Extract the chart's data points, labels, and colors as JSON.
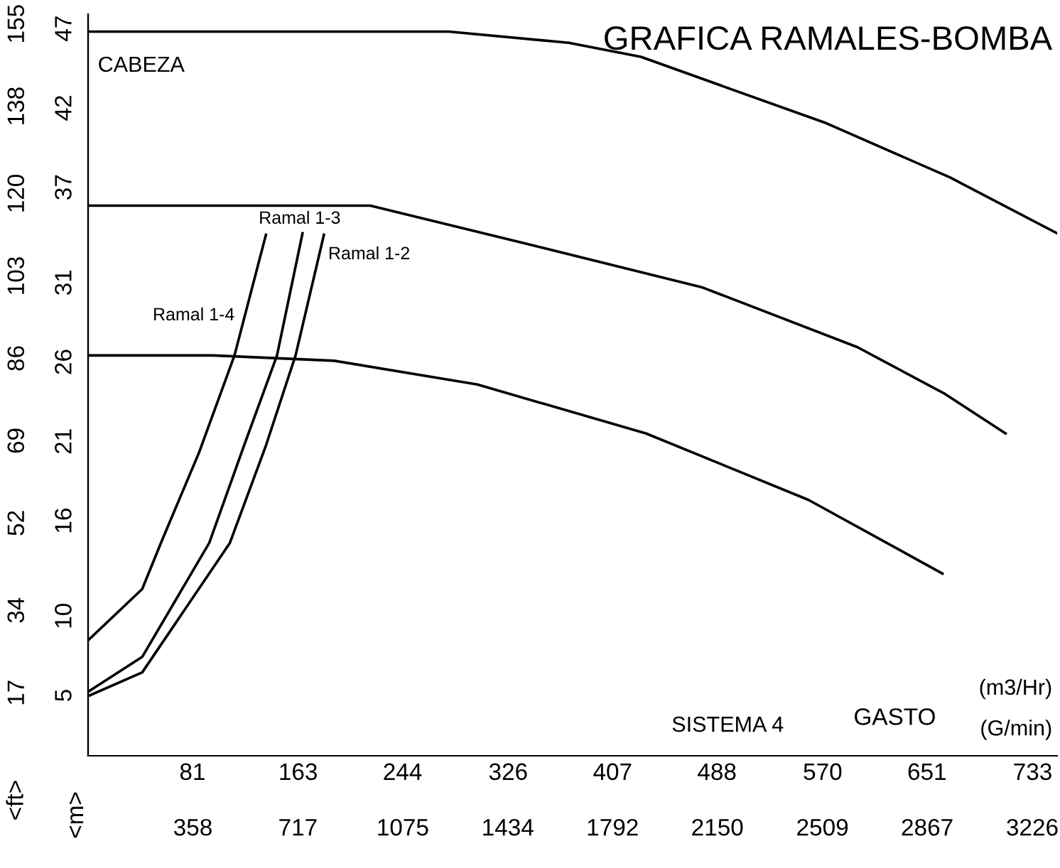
{
  "chart_data": {
    "type": "line",
    "title": "GRAFICA RAMALES-BOMBA",
    "ylabel": "<ft>",
    "y2label": "<m>",
    "xlabel": "GASTO",
    "annotations": [
      "CABEZA",
      "SISTEMA 4",
      "(m3/Hr)",
      "(G/min)"
    ],
    "xlim": [
      0,
      752
    ],
    "xticks": [
      81,
      163,
      244,
      326,
      407,
      488,
      570,
      651,
      733
    ],
    "x2lim": [
      0,
      3311
    ],
    "x2ticks": [
      358,
      717,
      1075,
      1434,
      1792,
      2150,
      2509,
      2867,
      3226
    ],
    "ylim": [
      4,
      157
    ],
    "yticks": [
      17,
      34,
      52,
      69,
      86,
      103,
      120,
      138,
      155
    ],
    "y2lim": [
      1.2,
      47.9
    ],
    "y2ticks": [
      5,
      10,
      16,
      21,
      26,
      31,
      37,
      42,
      47
    ],
    "grid": false,
    "legend": false,
    "marker": "none",
    "line_style": "solid",
    "series": [
      {
        "color": "#000000",
        "x": [
          0,
          280,
          373,
          429,
          573,
          669,
          752
        ],
        "values": [
          153.4,
          153.4,
          151.1,
          148.2,
          134.5,
          123.3,
          111.8
        ]
      },
      {
        "color": "#000000",
        "x": [
          0,
          219,
          333,
          477,
          597,
          664,
          712
        ],
        "values": [
          117.5,
          117.5,
          110.1,
          100.6,
          88.3,
          78.8,
          70.5
        ]
      },
      {
        "color": "#000000",
        "x": [
          0,
          97,
          191,
          302,
          433,
          559,
          663
        ],
        "values": [
          86.6,
          86.6,
          85.5,
          80.6,
          70.5,
          56.8,
          41.6
        ]
      },
      {
        "name": "Ramal 1-4",
        "color": "#000000",
        "x": [
          0,
          42,
          56.5,
          86,
          113.6,
          138
        ],
        "values": [
          27.8,
          38.4,
          47.9,
          66.5,
          86.6,
          111.5
        ]
      },
      {
        "name": "Ramal 1-3",
        "color": "#000000",
        "x": [
          0,
          42,
          94,
          121,
          146.6,
          166.4
        ],
        "values": [
          17.2,
          24.4,
          47.9,
          68,
          86.6,
          111.8
        ]
      },
      {
        "name": "Ramal 1-2",
        "color": "#000000",
        "x": [
          0,
          42,
          110,
          138,
          161,
          183
        ],
        "values": [
          16.3,
          21.2,
          47.9,
          68,
          86.6,
          111.5
        ]
      }
    ]
  }
}
